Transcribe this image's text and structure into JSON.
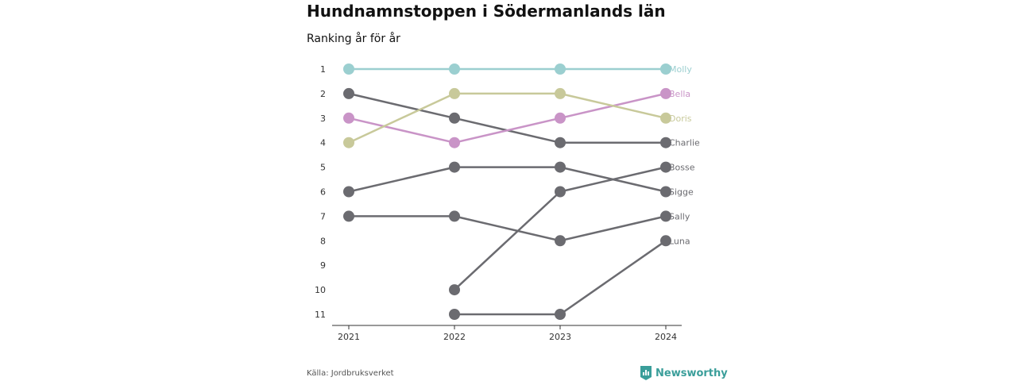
{
  "header": {
    "title": "Hundnamnstoppen i Södermanlands län",
    "subtitle": "Ranking år för år"
  },
  "footer": {
    "source": "Källa: Jordbruksverket",
    "brand": "Newsworthy",
    "brand_color": "#3a9e9a"
  },
  "chart_data": {
    "type": "line",
    "title": "Hundnamnstoppen i Södermanlands län",
    "subtitle": "Ranking år för år",
    "x": [
      "2021",
      "2022",
      "2023",
      "2024"
    ],
    "y_ticks": [
      1,
      2,
      3,
      4,
      5,
      6,
      7,
      8,
      9,
      10,
      11
    ],
    "y_reversed": true,
    "ylim": [
      1,
      11
    ],
    "grid": false,
    "legend": "labels at line ends (right)",
    "series": [
      {
        "name": "Molly",
        "values": [
          1,
          1,
          1,
          1
        ],
        "color": "#9bcfd0"
      },
      {
        "name": "Bella",
        "values": [
          3,
          4,
          3,
          2
        ],
        "color": "#c994c7"
      },
      {
        "name": "Doris",
        "values": [
          4,
          2,
          2,
          3
        ],
        "color": "#c8c99a"
      },
      {
        "name": "Charlie",
        "values": [
          2,
          3,
          4,
          4
        ],
        "color": "#6b6b70"
      },
      {
        "name": "Bosse",
        "values": [
          null,
          10,
          6,
          5
        ],
        "color": "#6b6b70"
      },
      {
        "name": "Sigge",
        "values": [
          6,
          5,
          5,
          6
        ],
        "color": "#6b6b70"
      },
      {
        "name": "Sally",
        "values": [
          7,
          7,
          8,
          7
        ],
        "color": "#6b6b70"
      },
      {
        "name": "Luna",
        "values": [
          null,
          11,
          11,
          8
        ],
        "color": "#6b6b70"
      }
    ]
  }
}
